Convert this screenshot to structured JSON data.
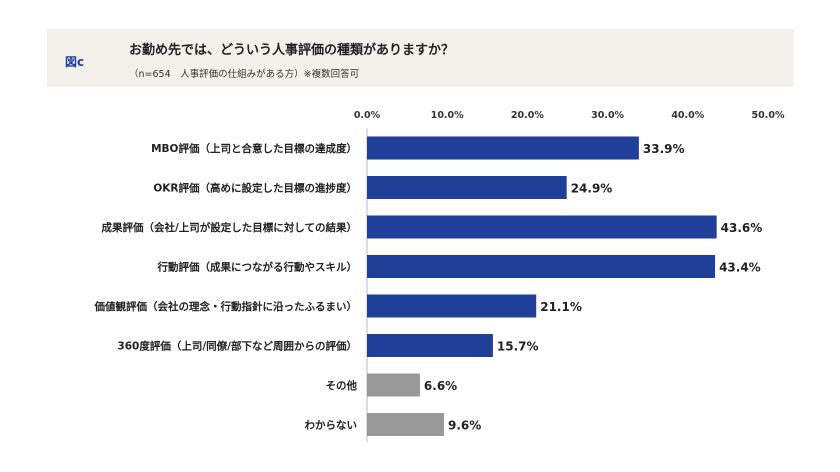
{
  "header": {
    "fig_label": "図c",
    "title": "お勤め先では、どういう人事評価の種類がありますか？",
    "subtitle": "（n=654　人事評価の仕組みがある方）※複数回答可"
  },
  "colors": {
    "primary_bar": "#1f3f99",
    "other_bar": "#999999",
    "header_bg": "#f3f1ec"
  },
  "chart_data": {
    "type": "bar",
    "orientation": "horizontal",
    "title": "お勤め先では、どういう人事評価の種類がありますか？",
    "categories": [
      "MBO評価（上司と合意した目標の達成度）",
      "OKR評価（高めに設定した目標の進捗度）",
      "成果評価（会社/上司が設定した目標に対しての結果）",
      "行動評価（成果につながる行動やスキル）",
      "価値観評価（会社の理念・行動指針に沿ったふるまい）",
      "360度評価（上司/同僚/部下など周囲からの評価）",
      "その他",
      "わからない"
    ],
    "values": [
      33.9,
      24.9,
      43.6,
      43.4,
      21.1,
      15.7,
      6.6,
      9.6
    ],
    "value_labels": [
      "33.9%",
      "24.9%",
      "43.6%",
      "43.4%",
      "21.1%",
      "15.7%",
      "6.6%",
      "9.6%"
    ],
    "bar_colors": [
      "#1f3f99",
      "#1f3f99",
      "#1f3f99",
      "#1f3f99",
      "#1f3f99",
      "#1f3f99",
      "#999999",
      "#999999"
    ],
    "xlim": [
      0,
      50
    ],
    "ticks": [
      0,
      10,
      20,
      30,
      40,
      50
    ],
    "tick_labels": [
      "0.0%",
      "10.0%",
      "20.0%",
      "30.0%",
      "40.0%",
      "50.0%"
    ],
    "grid": false,
    "legend": "none"
  }
}
